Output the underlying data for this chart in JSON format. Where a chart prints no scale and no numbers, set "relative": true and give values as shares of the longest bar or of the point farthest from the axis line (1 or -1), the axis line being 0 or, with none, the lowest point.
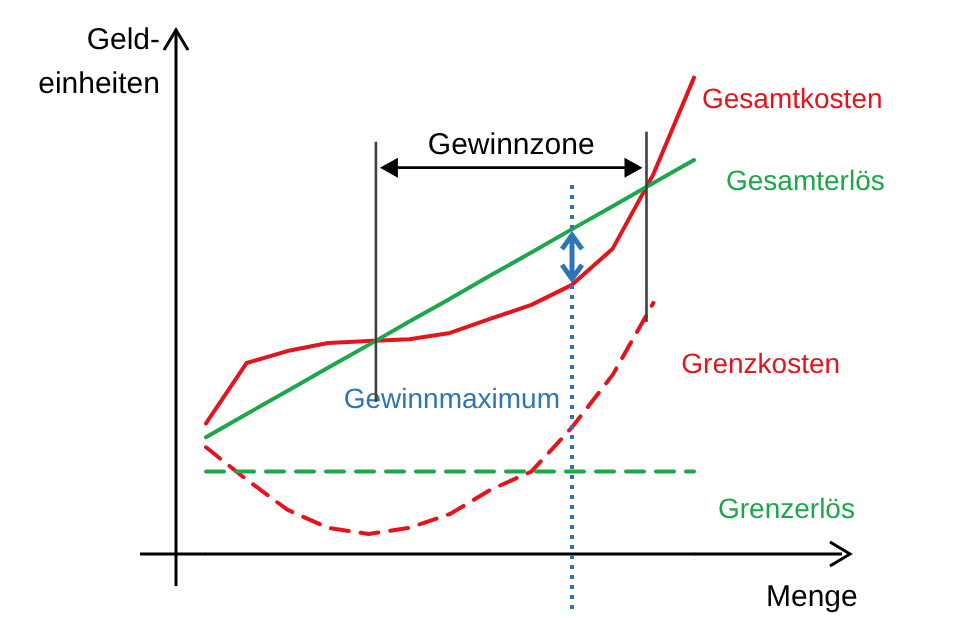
{
  "chart_data": {
    "type": "line",
    "relative": true,
    "xlabel": "Menge",
    "ylabel": "Geld-\neinheiten",
    "grid": false,
    "legend": false,
    "marker": "none",
    "categories": [
      null,
      null,
      null,
      null,
      null,
      null,
      null,
      null,
      null,
      null,
      null,
      null,
      null
    ],
    "series": [
      {
        "name": "Gesamtkosten",
        "color": "#e3141b",
        "line_style": "solid",
        "values": [
          0.274,
          0.401,
          0.426,
          0.443,
          0.447,
          0.451,
          0.464,
          0.494,
          0.523,
          0.565,
          0.641,
          0.797,
          1.0
        ]
      },
      {
        "name": "Gesamterlös",
        "color": "#1ea64a",
        "line_style": "solid",
        "values": [
          0.245,
          0.294,
          0.342,
          0.391,
          0.439,
          0.488,
          0.536,
          0.585,
          0.633,
          0.682,
          0.73,
          0.779,
          0.827
        ]
      },
      {
        "name": "Grenzkosten",
        "color": "#e3141b",
        "line_style": "dashed",
        "values": [
          0.224,
          0.156,
          0.093,
          0.055,
          0.042,
          0.055,
          0.084,
          0.135,
          0.173,
          0.266,
          0.376,
          0.527,
          null
        ]
      },
      {
        "name": "Grenzerlös",
        "color": "#1ea64a",
        "line_style": "dashed",
        "values": [
          0.173,
          0.173,
          0.173,
          0.173,
          0.173,
          0.173,
          0.173,
          0.173,
          0.173,
          0.173,
          0.173,
          0.173,
          0.173
        ]
      }
    ],
    "annotations": [
      "Gewinnzone",
      "Gewinnmaximum"
    ]
  }
}
